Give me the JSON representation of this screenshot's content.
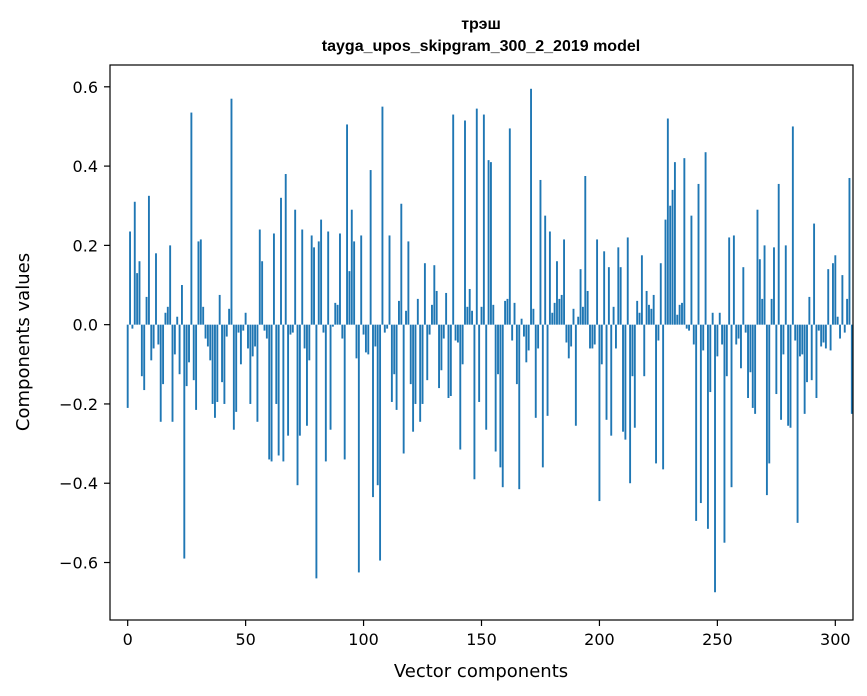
{
  "chart_data": {
    "type": "bar",
    "title": "трэш",
    "subtitle": "tayga_upos_skipgram_300_2_2019 model",
    "xlabel": "Vector components",
    "ylabel": "Components values",
    "xlim": [
      -7.5,
      307.5
    ],
    "ylim": [
      -0.745,
      0.655
    ],
    "xticks": [
      0,
      50,
      100,
      150,
      200,
      250,
      300
    ],
    "xtick_labels": [
      "0",
      "50",
      "100",
      "150",
      "200",
      "250",
      "300"
    ],
    "yticks": [
      -0.6,
      -0.4,
      -0.2,
      0.0,
      0.2,
      0.4,
      0.6
    ],
    "ytick_labels": [
      "−0.6",
      "−0.4",
      "−0.2",
      "0.0",
      "0.2",
      "0.4",
      "0.6"
    ],
    "bar_color": "#1f77b4",
    "values": [
      -0.21,
      0.235,
      -0.01,
      0.31,
      0.13,
      0.16,
      -0.13,
      -0.165,
      0.07,
      0.325,
      -0.09,
      -0.06,
      0.18,
      -0.05,
      -0.245,
      -0.15,
      0.03,
      0.045,
      0.2,
      -0.245,
      -0.075,
      0.02,
      -0.125,
      0.1,
      -0.59,
      -0.155,
      -0.095,
      0.535,
      -0.14,
      -0.215,
      0.21,
      0.215,
      0.045,
      -0.035,
      -0.055,
      -0.09,
      -0.2,
      -0.235,
      -0.195,
      0.075,
      -0.145,
      -0.2,
      -0.03,
      0.04,
      0.57,
      -0.265,
      -0.22,
      -0.02,
      -0.1,
      -0.015,
      0.03,
      -0.06,
      -0.2,
      -0.08,
      -0.055,
      -0.245,
      0.24,
      0.16,
      -0.015,
      -0.035,
      -0.34,
      -0.345,
      0.23,
      -0.2,
      -0.33,
      0.32,
      -0.345,
      0.38,
      -0.28,
      -0.025,
      -0.02,
      0.29,
      -0.405,
      -0.28,
      0.24,
      -0.06,
      -0.255,
      -0.09,
      0.225,
      0.195,
      -0.64,
      0.21,
      0.265,
      -0.02,
      -0.345,
      0.235,
      -0.265,
      -0.005,
      0.055,
      0.05,
      0.23,
      -0.035,
      -0.34,
      0.505,
      0.135,
      0.29,
      0.21,
      -0.085,
      -0.625,
      0.225,
      -0.025,
      -0.07,
      -0.075,
      0.39,
      -0.435,
      -0.055,
      -0.405,
      -0.595,
      0.55,
      -0.02,
      -0.01,
      0.225,
      -0.195,
      -0.125,
      -0.215,
      0.06,
      0.305,
      -0.325,
      0.035,
      0.21,
      -0.15,
      -0.27,
      -0.2,
      0.065,
      -0.245,
      -0.2,
      0.155,
      -0.14,
      -0.025,
      0.05,
      0.15,
      0.085,
      -0.16,
      -0.115,
      -0.035,
      0.08,
      -0.185,
      -0.18,
      0.53,
      -0.04,
      -0.045,
      -0.315,
      -0.1,
      0.515,
      0.045,
      0.09,
      0.035,
      -0.39,
      0.545,
      -0.195,
      0.045,
      0.53,
      -0.265,
      0.415,
      0.41,
      0.05,
      -0.32,
      -0.125,
      -0.36,
      -0.41,
      0.06,
      0.065,
      0.495,
      -0.04,
      0.055,
      -0.15,
      -0.415,
      0.015,
      -0.03,
      -0.095,
      -0.065,
      0.595,
      0.04,
      -0.235,
      -0.06,
      0.365,
      -0.36,
      0.275,
      -0.23,
      0.235,
      0.03,
      0.055,
      0.16,
      0.065,
      0.075,
      0.215,
      -0.045,
      -0.085,
      -0.055,
      0.04,
      -0.255,
      0.02,
      0.14,
      0.045,
      0.375,
      0.085,
      -0.06,
      -0.06,
      -0.05,
      0.215,
      -0.445,
      -0.1,
      0.185,
      -0.24,
      0.145,
      -0.28,
      0.045,
      -0.06,
      0.195,
      0.145,
      -0.27,
      -0.29,
      0.22,
      -0.4,
      -0.13,
      -0.26,
      0.06,
      0.03,
      0.175,
      -0.13,
      0.085,
      0.05,
      0.04,
      0.075,
      -0.35,
      -0.04,
      0.155,
      -0.365,
      0.265,
      0.52,
      0.3,
      0.34,
      0.41,
      0.025,
      0.05,
      0.055,
      0.42,
      -0.01,
      -0.015,
      0.275,
      -0.05,
      -0.495,
      0.355,
      -0.45,
      -0.065,
      0.435,
      -0.515,
      -0.17,
      0.03,
      -0.675,
      -0.08,
      0.03,
      -0.05,
      -0.55,
      -0.13,
      0.22,
      -0.41,
      0.225,
      -0.05,
      -0.035,
      -0.11,
      0.145,
      -0.02,
      -0.185,
      -0.12,
      -0.21,
      -0.225,
      0.29,
      0.165,
      0.065,
      0.2,
      -0.43,
      -0.35,
      0.065,
      0.195,
      -0.175,
      0.355,
      -0.24,
      -0.075,
      0.2,
      -0.255,
      -0.26,
      0.5,
      -0.04,
      -0.5,
      -0.08,
      -0.075,
      -0.225,
      -0.145,
      0.07,
      -0.14,
      0.255,
      -0.185,
      -0.015,
      -0.055,
      -0.045,
      -0.06,
      0.14,
      -0.065,
      0.155,
      0.175,
      0.02,
      -0.035,
      0.125,
      -0.02,
      0.065,
      0.37,
      -0.225
    ]
  }
}
